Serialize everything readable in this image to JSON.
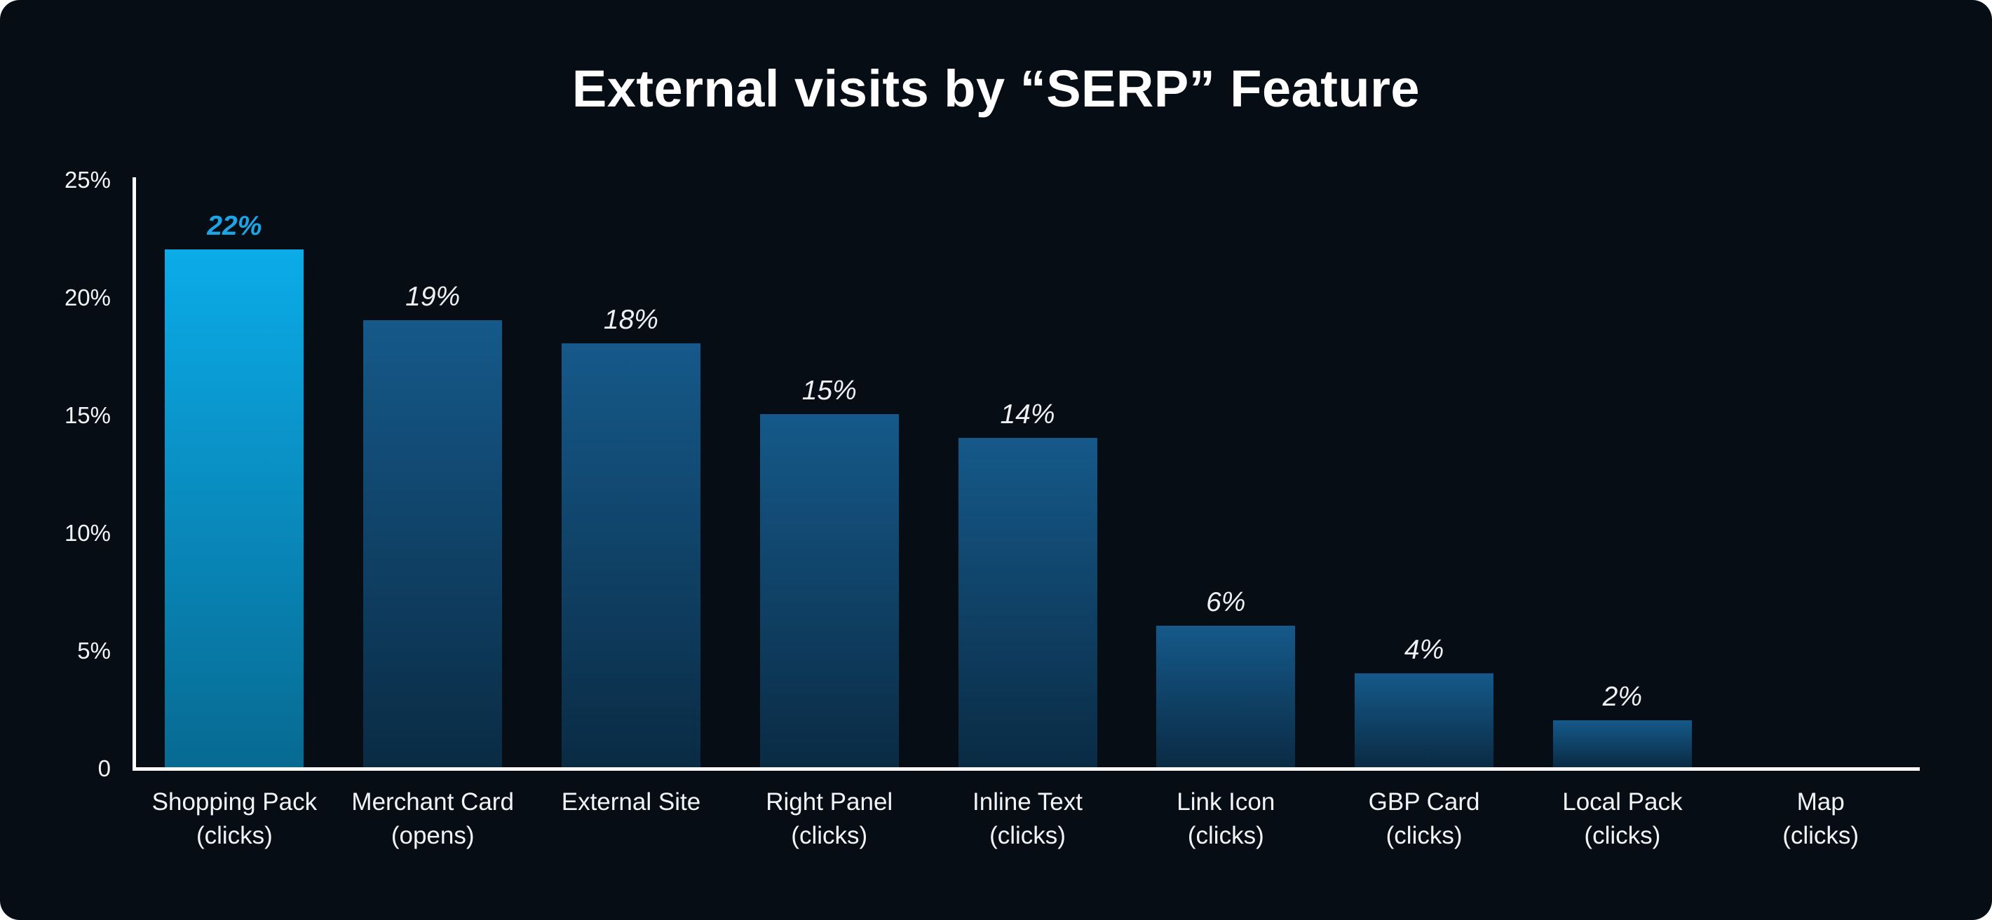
{
  "title": "External visits by “SERP” Feature",
  "chart_data": {
    "type": "bar",
    "title": "External visits by “SERP” Feature",
    "categories": [
      [
        "Shopping Pack",
        "(clicks)"
      ],
      [
        "Merchant Card",
        "(opens)"
      ],
      [
        "External Site"
      ],
      [
        "Right Panel",
        "(clicks)"
      ],
      [
        "Inline Text",
        "(clicks)"
      ],
      [
        "Link Icon",
        "(clicks)"
      ],
      [
        "GBP Card",
        "(clicks)"
      ],
      [
        "Local Pack",
        "(clicks)"
      ],
      [
        "Map",
        "(clicks)"
      ]
    ],
    "values": [
      22,
      19,
      18,
      15,
      14,
      6,
      4,
      2,
      0
    ],
    "value_labels": [
      "22%",
      "19%",
      "18%",
      "15%",
      "14%",
      "6%",
      "4%",
      "2%",
      null
    ],
    "emphasis_index": 0,
    "xlabel": "",
    "ylabel": "",
    "ylim": [
      0,
      25
    ],
    "yticks": [
      {
        "value": 0,
        "label": "0"
      },
      {
        "value": 5,
        "label": "5%"
      },
      {
        "value": 10,
        "label": "10%"
      },
      {
        "value": 15,
        "label": "15%"
      },
      {
        "value": 20,
        "label": "20%"
      },
      {
        "value": 25,
        "label": "25%"
      }
    ],
    "grid": false,
    "legend": false
  },
  "colors": {
    "background": "#070D15",
    "title_text": "#FFFFFF",
    "axis": "#FFFFFF",
    "tick_text": "#F2F5F7",
    "category_text": "#F2F5F7",
    "bar_top": "#15598A",
    "bar_bottom": "#0A2B44",
    "bar_highlight_top": "#0BACE9",
    "bar_highlight_bottom": "#076A92",
    "value_label": "#EDF1F4",
    "value_label_highlight": "#1BA4E6"
  }
}
